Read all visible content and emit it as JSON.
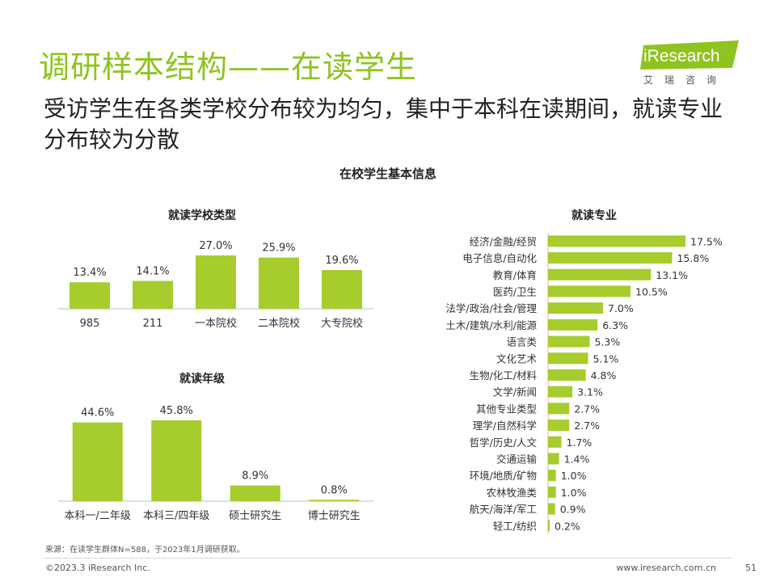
{
  "header": {
    "title": "调研样本结构——在读学生",
    "subtitle": "受访学生在各类学校分布较为均匀，集中于本科在读期间，就读专业分布较为分散"
  },
  "logo": {
    "brand": "iResearch",
    "cn": "艾瑞咨询",
    "accent_color": "#8fc31f"
  },
  "main_title": "在校学生基本信息",
  "bar_color": "#a6cc2d",
  "chart_data": [
    {
      "id": "school-type",
      "type": "bar",
      "title": "就读学校类型",
      "categories": [
        "985",
        "211",
        "一本院校",
        "二本院校",
        "大专院校"
      ],
      "values": [
        13.4,
        14.1,
        27.0,
        25.9,
        19.6
      ],
      "labels": [
        "13.4%",
        "14.1%",
        "27.0%",
        "25.9%",
        "19.6%"
      ],
      "unit": "%"
    },
    {
      "id": "grade",
      "type": "bar",
      "title": "就读年级",
      "categories": [
        "本科一/二年级",
        "本科三/四年级",
        "硕士研究生",
        "博士研究生"
      ],
      "values": [
        44.6,
        45.8,
        8.9,
        0.8
      ],
      "labels": [
        "44.6%",
        "45.8%",
        "8.9%",
        "0.8%"
      ],
      "unit": "%"
    },
    {
      "id": "major",
      "type": "bar",
      "orientation": "horizontal",
      "title": "就读专业",
      "categories": [
        "经济/金融/经贸",
        "电子信息/自动化",
        "教育/体育",
        "医药/卫生",
        "法学/政治/社会/管理",
        "土木/建筑/水利/能源",
        "语言类",
        "文化艺术",
        "生物/化工/材料",
        "文学/新闻",
        "其他专业类型",
        "理学/自然科学",
        "哲学/历史/人文",
        "交通运输",
        "环境/地质/矿物",
        "农林牧渔类",
        "航天/海洋/军工",
        "轻工/纺织"
      ],
      "values": [
        17.5,
        15.8,
        13.1,
        10.5,
        7.0,
        6.3,
        5.3,
        5.1,
        4.8,
        3.1,
        2.7,
        2.7,
        1.7,
        1.4,
        1.0,
        1.0,
        0.9,
        0.2
      ],
      "labels": [
        "17.5%",
        "15.8%",
        "13.1%",
        "10.5%",
        "7.0%",
        "6.3%",
        "5.3%",
        "5.1%",
        "4.8%",
        "3.1%",
        "2.7%",
        "2.7%",
        "1.7%",
        "1.4%",
        "1.0%",
        "1.0%",
        "0.9%",
        "0.2%"
      ],
      "unit": "%"
    }
  ],
  "footer": {
    "source": "来源：在读学生群体N=588，于2023年1月调研获取。",
    "copyright": "©2023.3 iResearch Inc.",
    "website": "www.iresearch.com.cn",
    "page": "51"
  }
}
